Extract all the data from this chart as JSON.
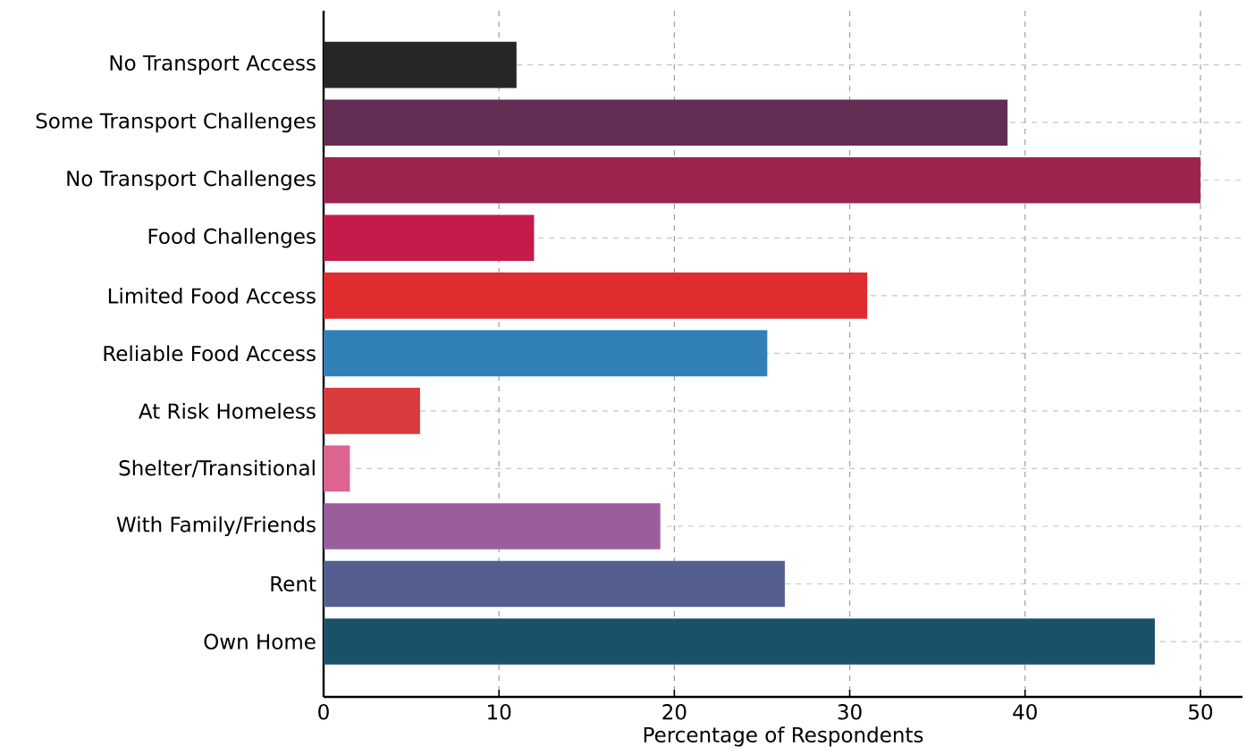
{
  "chart_data": {
    "type": "bar",
    "orientation": "horizontal",
    "xlabel": "Percentage of Respondents",
    "categories": [
      "No Transport Access",
      "Some Transport Challenges",
      "No Transport Challenges",
      "Food Challenges",
      "Limited Food Access",
      "Reliable Food Access",
      "At Risk Homeless",
      "Shelter/Transitional",
      "With Family/Friends",
      "Rent",
      "Own Home"
    ],
    "values": [
      11.0,
      39.0,
      50.0,
      12.0,
      31.0,
      25.3,
      5.5,
      1.5,
      19.2,
      26.3,
      47.4
    ],
    "colors": [
      "#262626",
      "#642d53",
      "#9b234d",
      "#c51b4a",
      "#e02b2f",
      "#3280b8",
      "#d83c3d",
      "#de6490",
      "#9a5e9e",
      "#555f8f",
      "#1a516a"
    ],
    "xlim": [
      0,
      52.4
    ],
    "xticks": [
      0,
      10,
      20,
      30,
      40,
      50
    ],
    "grid": true
  }
}
